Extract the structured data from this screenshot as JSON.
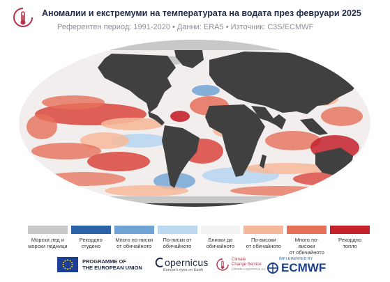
{
  "header": {
    "title": "Аномалии и екстремуми на температурата на водата през февруари 2025",
    "subtitle": "Референтен период: 1991-2020 • Данни: ERA5 • Източник: C3S/ECMWF"
  },
  "legend": {
    "items": [
      {
        "label": "Морски лед и\nморски ледници",
        "color": "#c8c8c8"
      },
      {
        "label": "Рекордно\nстудено",
        "color": "#2a63a8"
      },
      {
        "label": "Много по-ниски\nот обичайното",
        "color": "#6ea3d4"
      },
      {
        "label": "По-ниски от\nобичайното",
        "color": "#bcd8ef"
      },
      {
        "label": "Близки до\nобичайното",
        "color": "#f2f2f2"
      },
      {
        "label": "По-високи\nот обичайното",
        "color": "#f6b89a"
      },
      {
        "label": "Много по-високи\nот обичайното",
        "color": "#e6705a"
      },
      {
        "label": "Рекордно\nтопло",
        "color": "#c4222b"
      }
    ]
  },
  "footer": {
    "eu_text": "PROGRAMME OF\nTHE EUROPEAN UNION",
    "copernicus_name": "opernicus",
    "copernicus_sub": "Europe's eyes on Earth",
    "c3s_text": "Climate\nChange Service",
    "c3s_url": "climate.copernicus.eu",
    "ecmwf_small": "IMPLEMENTED BY",
    "ecmwf_name": "ECMWF"
  },
  "colors": {
    "land": "#404040",
    "ice": "#c8c8c8",
    "ocean_base": "#f3eeee"
  }
}
